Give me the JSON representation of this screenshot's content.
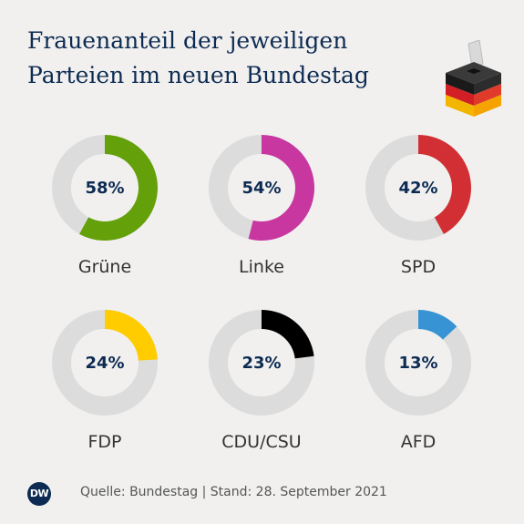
{
  "title_line1": "Frauenanteil der jeweiligen",
  "title_line2": "Parteien im neuen Bundestag",
  "source": "Quelle: Bundestag | Stand: 28. September 2021",
  "logo_text": "DW",
  "colors": {
    "track": "#dcdcdc",
    "background": "#f1f0ef",
    "text": "#0d2b52"
  },
  "chart_data": {
    "type": "pie",
    "title": "Frauenanteil der jeweiligen Parteien im neuen Bundestag",
    "unit": "%",
    "items": [
      {
        "party": "Grüne",
        "value": 58,
        "label": "58%",
        "color": "#64a00a"
      },
      {
        "party": "Linke",
        "value": 54,
        "label": "54%",
        "color": "#c8369f"
      },
      {
        "party": "SPD",
        "value": 42,
        "label": "42%",
        "color": "#d12f33"
      },
      {
        "party": "FDP",
        "value": 24,
        "label": "24%",
        "color": "#ffcc00"
      },
      {
        "party": "CDU/CSU",
        "value": 23,
        "label": "23%",
        "color": "#000000"
      },
      {
        "party": "AFD",
        "value": 13,
        "label": "13%",
        "color": "#3793d3"
      }
    ]
  }
}
